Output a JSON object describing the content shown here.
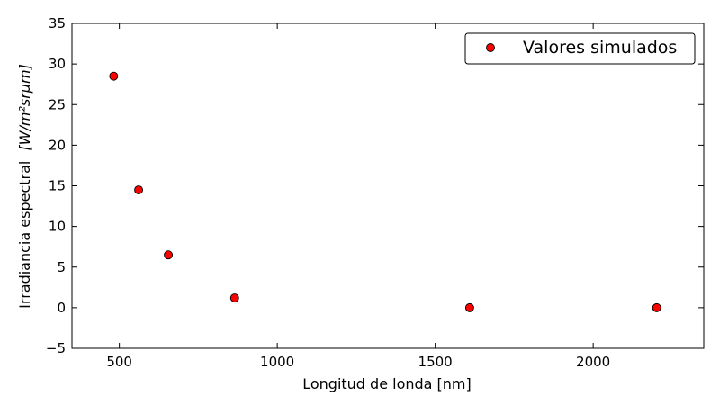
{
  "chart_data": {
    "type": "scatter",
    "xlabel": "Longitud de londa [nm]",
    "ylabel": "Irradiancia espectral",
    "ylabel_units": "[W/m²srμm]",
    "xlim": [
      350,
      2350
    ],
    "ylim": [
      -5,
      35
    ],
    "xticks": [
      500,
      1000,
      1500,
      2000
    ],
    "yticks": [
      -5,
      0,
      5,
      10,
      15,
      20,
      25,
      30,
      35
    ],
    "grid": false,
    "legend_position": "top-right",
    "series": [
      {
        "name": "Valores simulados",
        "marker": "circle",
        "color": "#ff0000",
        "edge_color": "#000000",
        "x": [
          482,
          561,
          655,
          865,
          1609,
          2201
        ],
        "y": [
          28.5,
          14.5,
          6.5,
          1.2,
          0.0,
          0.0
        ]
      }
    ]
  }
}
